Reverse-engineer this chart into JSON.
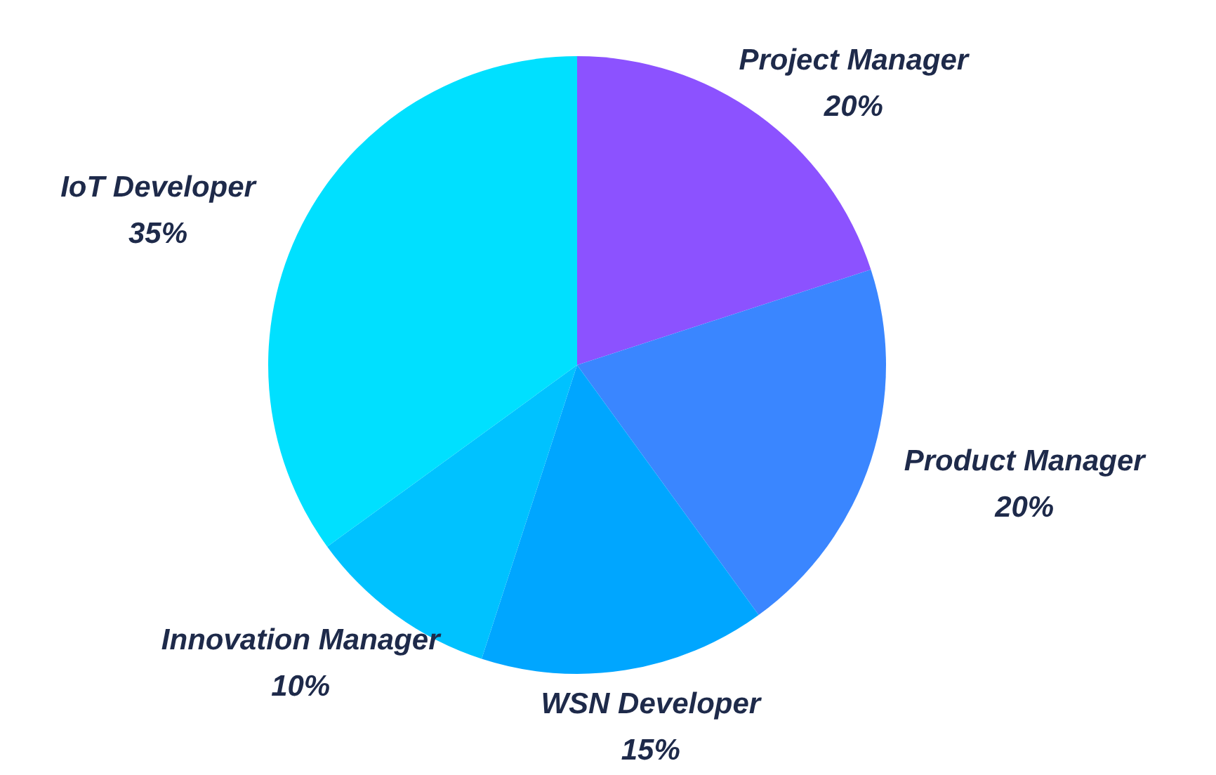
{
  "chart_data": {
    "type": "pie",
    "categories": [
      "Project Manager",
      "Product Manager",
      "WSN Developer",
      "Innovation Manager",
      "IoT Developer"
    ],
    "values": [
      20,
      20,
      15,
      10,
      35
    ],
    "value_labels": [
      "20%",
      "20%",
      "15%",
      "10%",
      "35%"
    ],
    "colors": [
      "#8c52ff",
      "#3a86ff",
      "#00a6ff",
      "#00c2ff",
      "#00e0ff"
    ]
  }
}
